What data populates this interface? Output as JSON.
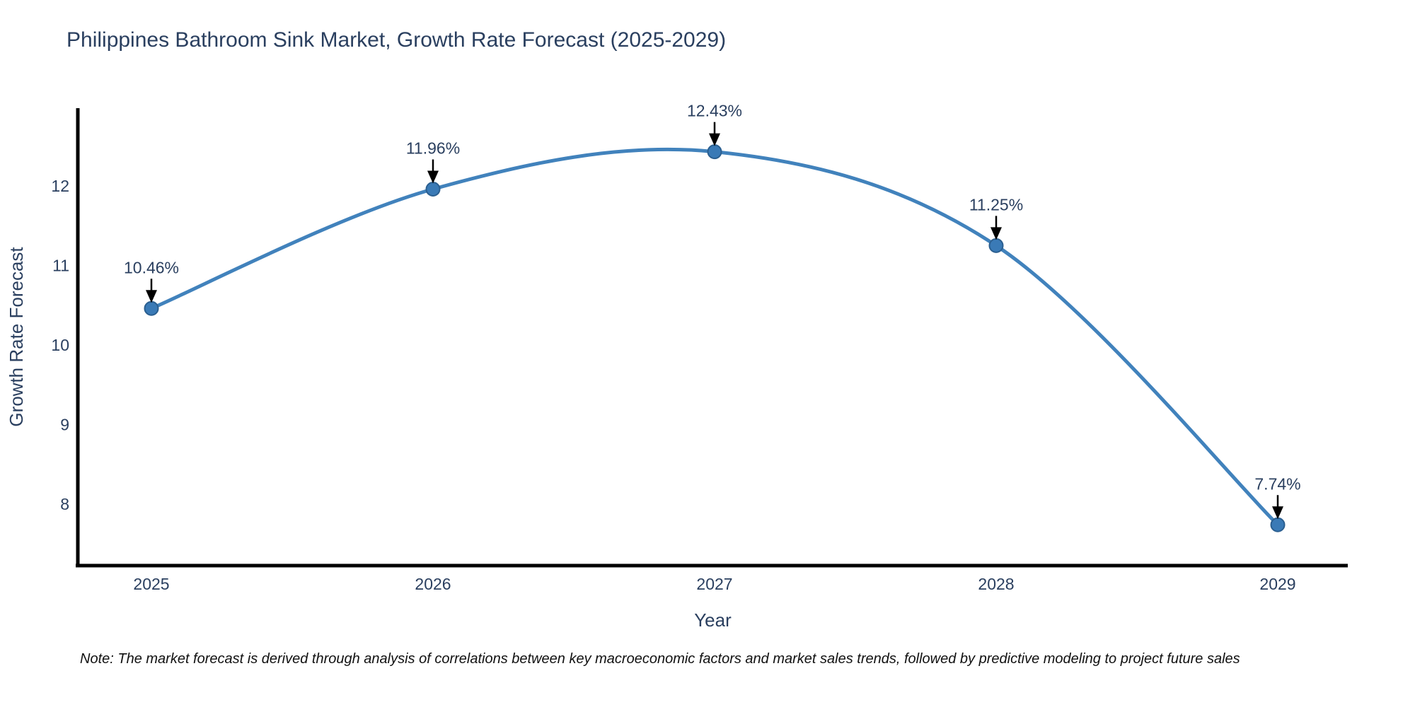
{
  "title": "Philippines Bathroom Sink Market, Growth Rate Forecast (2025-2029)",
  "note": "Note: The market forecast is derived through analysis of correlations between key macroeconomic factors and market sales trends, followed by predictive modeling to project future sales",
  "chart_data": {
    "type": "line",
    "line_shape": "spline",
    "title": "Philippines Bathroom Sink Market, Growth Rate Forecast (2025-2029)",
    "xlabel": "Year",
    "ylabel": "Growth Rate Forecast",
    "categories": [
      "2025",
      "2026",
      "2027",
      "2028",
      "2029"
    ],
    "x": [
      2025,
      2026,
      2027,
      2028,
      2029
    ],
    "values": [
      10.46,
      11.96,
      12.43,
      11.25,
      7.74
    ],
    "point_labels": [
      "10.46%",
      "11.96%",
      "12.43%",
      "11.25%",
      "7.74%"
    ],
    "yticks": [
      8,
      9,
      10,
      11,
      12
    ],
    "ylim": [
      7.23,
      12.98
    ],
    "grid": false,
    "legend": "none",
    "colors": {
      "line": "#4182bc",
      "marker_fill": "#3a7ab6",
      "marker_edge": "#2b5f90",
      "axis": "#000000",
      "text": "#2a3f5f",
      "annotation_text": "#2a3f5f",
      "annotation_arrow": "#000000",
      "background": "#ffffff"
    }
  }
}
